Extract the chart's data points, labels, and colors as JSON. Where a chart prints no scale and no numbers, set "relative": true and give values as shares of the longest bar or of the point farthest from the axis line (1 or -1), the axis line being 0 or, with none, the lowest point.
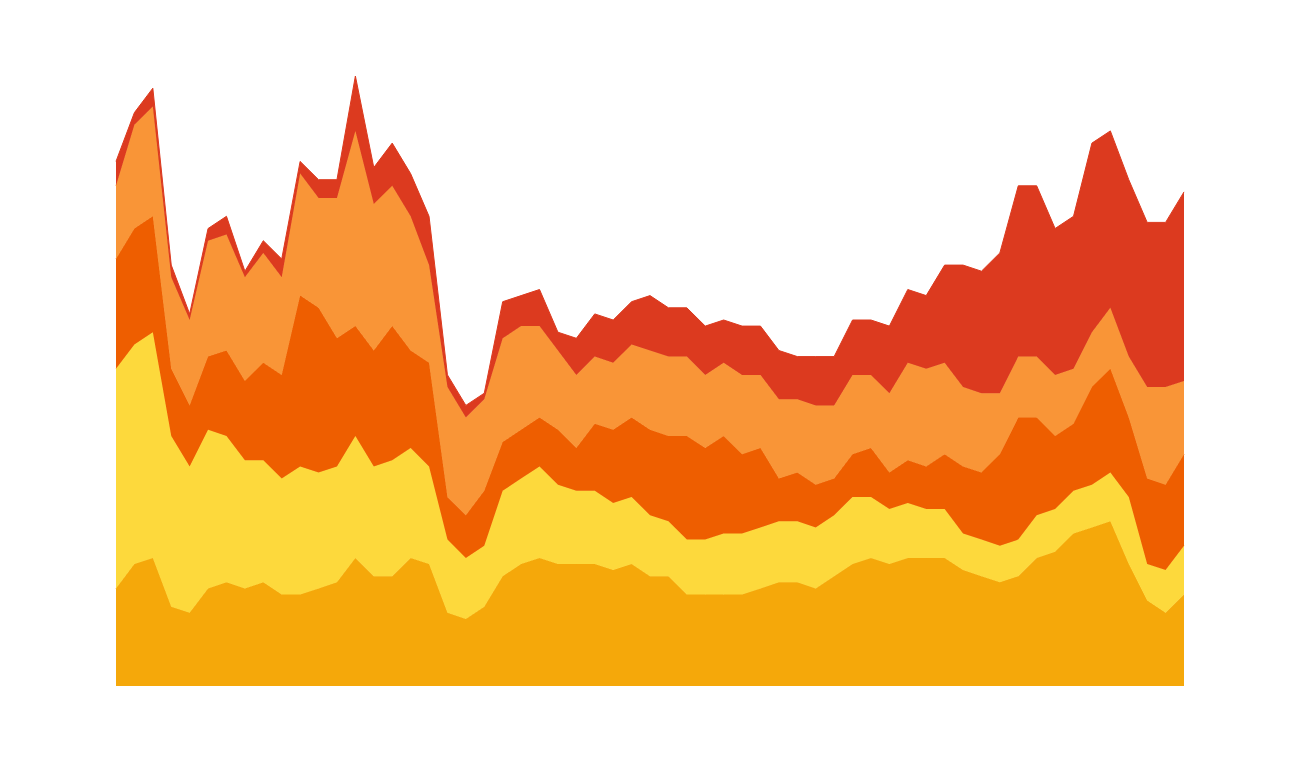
{
  "chart_data": {
    "type": "area",
    "relative": true,
    "stacked": true,
    "categories": [
      null,
      null,
      null,
      null,
      null,
      null,
      null,
      null,
      null,
      null,
      null,
      null,
      null,
      null,
      null,
      null,
      null,
      null,
      null,
      null,
      null,
      null,
      null,
      null,
      null,
      null,
      null,
      null,
      null,
      null,
      null,
      null,
      null,
      null,
      null,
      null,
      null,
      null,
      null,
      null,
      null,
      null,
      null,
      null,
      null,
      null,
      null,
      null,
      null,
      null,
      null,
      null,
      null,
      null,
      null,
      null,
      null,
      null,
      null
    ],
    "series": [
      {
        "color": "#f5a80a",
        "values": [
          0.16,
          0.2,
          0.21,
          0.13,
          0.12,
          0.16,
          0.17,
          0.16,
          0.17,
          0.15,
          0.15,
          0.16,
          0.17,
          0.21,
          0.18,
          0.18,
          0.21,
          0.2,
          0.12,
          0.11,
          0.13,
          0.18,
          0.2,
          0.21,
          0.2,
          0.2,
          0.2,
          0.19,
          0.2,
          0.18,
          0.18,
          0.15,
          0.15,
          0.15,
          0.15,
          0.16,
          0.17,
          0.17,
          0.16,
          0.18,
          0.2,
          0.21,
          0.2,
          0.21,
          0.21,
          0.21,
          0.19,
          0.18,
          0.17,
          0.18,
          0.21,
          0.22,
          0.25,
          0.26,
          0.27,
          0.2,
          0.14,
          0.12,
          0.15
        ]
      },
      {
        "color": "#fdd93c",
        "values": [
          0.36,
          0.36,
          0.37,
          0.28,
          0.24,
          0.26,
          0.24,
          0.21,
          0.2,
          0.19,
          0.21,
          0.19,
          0.19,
          0.2,
          0.18,
          0.19,
          0.18,
          0.16,
          0.12,
          0.1,
          0.1,
          0.14,
          0.14,
          0.15,
          0.13,
          0.12,
          0.12,
          0.11,
          0.11,
          0.1,
          0.09,
          0.09,
          0.09,
          0.1,
          0.1,
          0.1,
          0.1,
          0.1,
          0.1,
          0.1,
          0.11,
          0.1,
          0.09,
          0.09,
          0.08,
          0.08,
          0.06,
          0.06,
          0.06,
          0.06,
          0.07,
          0.07,
          0.07,
          0.07,
          0.08,
          0.11,
          0.06,
          0.07,
          0.08
        ]
      },
      {
        "color": "#ee5e00",
        "values": [
          0.18,
          0.19,
          0.19,
          0.11,
          0.1,
          0.12,
          0.14,
          0.13,
          0.16,
          0.17,
          0.28,
          0.27,
          0.21,
          0.18,
          0.19,
          0.22,
          0.16,
          0.17,
          0.07,
          0.07,
          0.09,
          0.08,
          0.08,
          0.08,
          0.09,
          0.07,
          0.11,
          0.12,
          0.13,
          0.14,
          0.14,
          0.17,
          0.15,
          0.16,
          0.13,
          0.13,
          0.07,
          0.08,
          0.07,
          0.06,
          0.07,
          0.08,
          0.06,
          0.07,
          0.07,
          0.09,
          0.11,
          0.11,
          0.15,
          0.2,
          0.16,
          0.12,
          0.11,
          0.16,
          0.17,
          0.13,
          0.14,
          0.14,
          0.15
        ]
      },
      {
        "color": "#f99537",
        "values": [
          0.12,
          0.17,
          0.18,
          0.15,
          0.14,
          0.19,
          0.19,
          0.17,
          0.18,
          0.16,
          0.2,
          0.18,
          0.23,
          0.32,
          0.24,
          0.23,
          0.22,
          0.16,
          0.18,
          0.16,
          0.15,
          0.17,
          0.17,
          0.15,
          0.13,
          0.12,
          0.11,
          0.11,
          0.12,
          0.13,
          0.13,
          0.13,
          0.12,
          0.12,
          0.13,
          0.12,
          0.13,
          0.12,
          0.13,
          0.12,
          0.13,
          0.12,
          0.13,
          0.16,
          0.16,
          0.15,
          0.13,
          0.13,
          0.1,
          0.1,
          0.1,
          0.1,
          0.09,
          0.09,
          0.1,
          0.1,
          0.15,
          0.16,
          0.12
        ]
      },
      {
        "color": "#dc3a1f",
        "values": [
          0.04,
          0.02,
          0.03,
          0.02,
          0.01,
          0.02,
          0.03,
          0.01,
          0.02,
          0.03,
          0.02,
          0.03,
          0.03,
          0.09,
          0.06,
          0.07,
          0.07,
          0.08,
          0.02,
          0.02,
          0.01,
          0.06,
          0.05,
          0.06,
          0.03,
          0.06,
          0.07,
          0.07,
          0.07,
          0.09,
          0.08,
          0.08,
          0.08,
          0.07,
          0.08,
          0.08,
          0.08,
          0.07,
          0.08,
          0.08,
          0.09,
          0.09,
          0.11,
          0.12,
          0.12,
          0.16,
          0.2,
          0.2,
          0.23,
          0.28,
          0.28,
          0.24,
          0.25,
          0.31,
          0.29,
          0.29,
          0.27,
          0.27,
          0.31
        ]
      }
    ]
  }
}
